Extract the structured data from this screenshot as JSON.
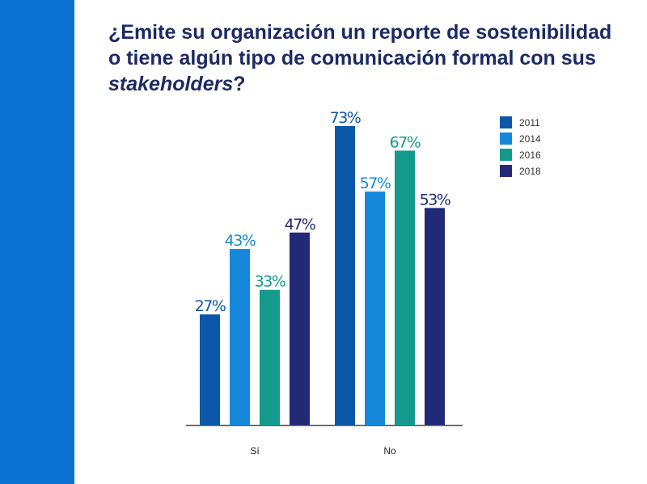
{
  "slide": {
    "title_part1": "¿Emite su organización un reporte de sostenibilidad o tiene algún tipo de comunicación formal con sus ",
    "title_emph": "stakeholders",
    "title_part2": "?"
  },
  "colors": {
    "side_bar": "#0a72d2",
    "title": "#1d2a63"
  },
  "chart_data": {
    "type": "bar",
    "categories": [
      "Sí",
      "No"
    ],
    "series": [
      {
        "name": "2011",
        "values": [
          27,
          73
        ],
        "labels": [
          "27%",
          "73%"
        ],
        "color": "#0b58a8"
      },
      {
        "name": "2014",
        "values": [
          43,
          57
        ],
        "labels": [
          "43%",
          "57%"
        ],
        "color": "#1688dc"
      },
      {
        "name": "2016",
        "values": [
          33,
          67
        ],
        "labels": [
          "33%",
          "67%"
        ],
        "color": "#159a8e"
      },
      {
        "name": "2018",
        "values": [
          47,
          53
        ],
        "labels": [
          "47%",
          "53%"
        ],
        "color": "#222a77"
      }
    ],
    "unit": "%",
    "ylim": [
      0,
      100
    ],
    "grid": false,
    "legend_position": "top-right"
  }
}
